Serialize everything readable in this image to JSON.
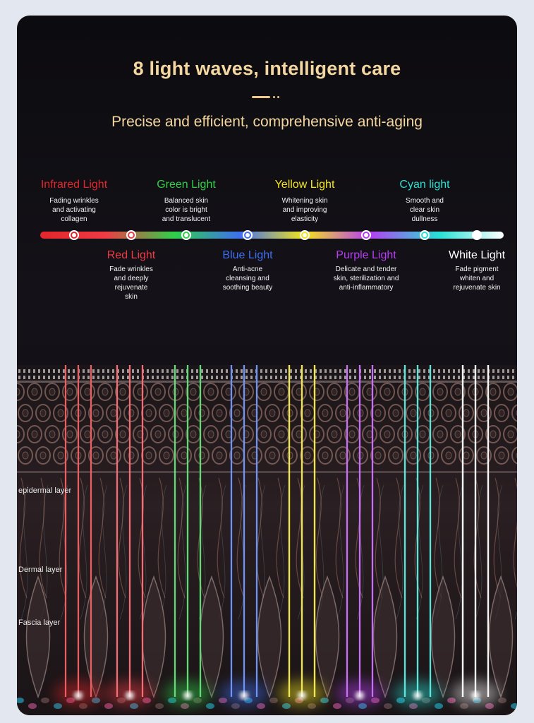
{
  "title": "8 light waves, intelligent care",
  "subtitle": "Precise and efficient, comprehensive anti-aging",
  "lights": [
    {
      "name": "Infrared Light",
      "desc": [
        "Fading wrinkles",
        "and activating",
        "collagen"
      ],
      "color": "#e1262c",
      "position": "top"
    },
    {
      "name": "Red Light",
      "desc": [
        "Fade wrinkles",
        "and deeply",
        "rejuvenate",
        "skin"
      ],
      "color": "#ef3b45",
      "position": "bottom"
    },
    {
      "name": "Green Light",
      "desc": [
        "Balanced skin",
        "color is bright",
        "and translucent"
      ],
      "color": "#2fd04a",
      "position": "top"
    },
    {
      "name": "Blue Light",
      "desc": [
        "Anti-acne",
        "cleansing and",
        "soothing beauty"
      ],
      "color": "#3f6ff0",
      "position": "bottom"
    },
    {
      "name": "Yellow Light",
      "desc": [
        "Whitening skin",
        "and improving",
        "elasticity"
      ],
      "color": "#f3e41c",
      "position": "top"
    },
    {
      "name": "Purple Light",
      "desc": [
        "Delicate and tender",
        "skin, sterilization and",
        "anti-inflammatory"
      ],
      "color": "#b63ef2",
      "position": "bottom"
    },
    {
      "name": "Cyan light",
      "desc": [
        "Smooth and",
        "clear skin",
        "dullness"
      ],
      "color": "#27e0d4",
      "position": "top"
    },
    {
      "name": "White Light",
      "desc": [
        "Fade pigment",
        "whiten and",
        "rejuvenate skin"
      ],
      "color": "#ffffff",
      "position": "bottom"
    }
  ],
  "layers": [
    "epidermal layer",
    "Dermal layer",
    "Fascia layer"
  ]
}
